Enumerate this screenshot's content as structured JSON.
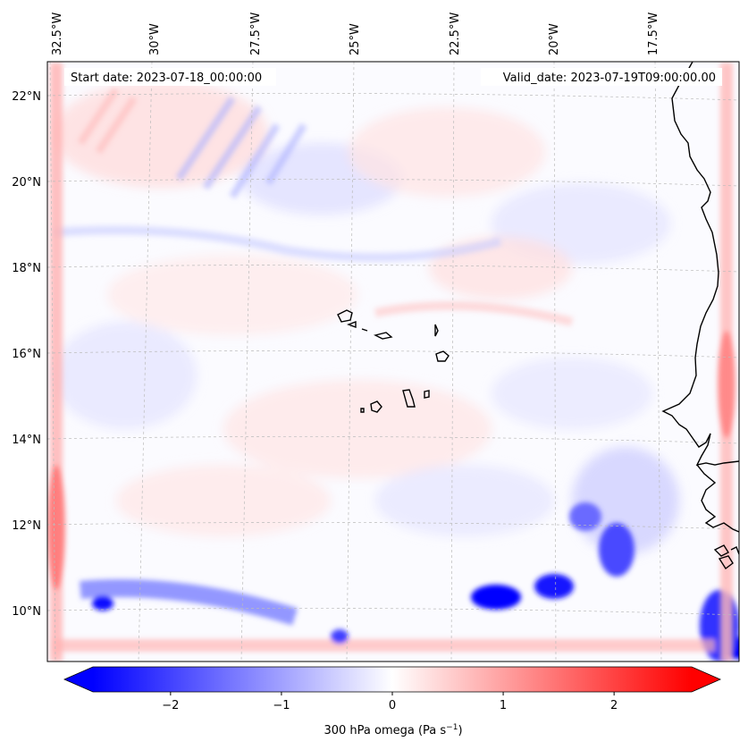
{
  "map": {
    "start_date": "Start date: 2023-07-18_00:00:00",
    "valid_date": "Valid_date: 2023-07-19T09:00:00.00",
    "lon_labels": [
      "32.5°W",
      "30°W",
      "27.5°W",
      "25°W",
      "22.5°W",
      "20°W",
      "17.5°W"
    ],
    "lat_labels": [
      "22°N",
      "20°N",
      "18°N",
      "16°N",
      "14°N",
      "12°N",
      "10°N"
    ],
    "field_name": "300 hPa omega",
    "colors": {
      "negative": "#0000ff",
      "zero": "#ffffff",
      "positive": "#ff0000",
      "coast": "#000000",
      "grid": "#bbbbbb"
    }
  },
  "colorbar": {
    "label": "300 hPa omega (Pa s",
    "label_exp": "−1",
    "label_close": ")",
    "ticks": [
      "−2",
      "−1",
      "0",
      "1",
      "2"
    ],
    "tick_values": [
      -2,
      -1,
      0,
      1,
      2
    ],
    "range": [
      -2.7,
      2.7
    ]
  }
}
